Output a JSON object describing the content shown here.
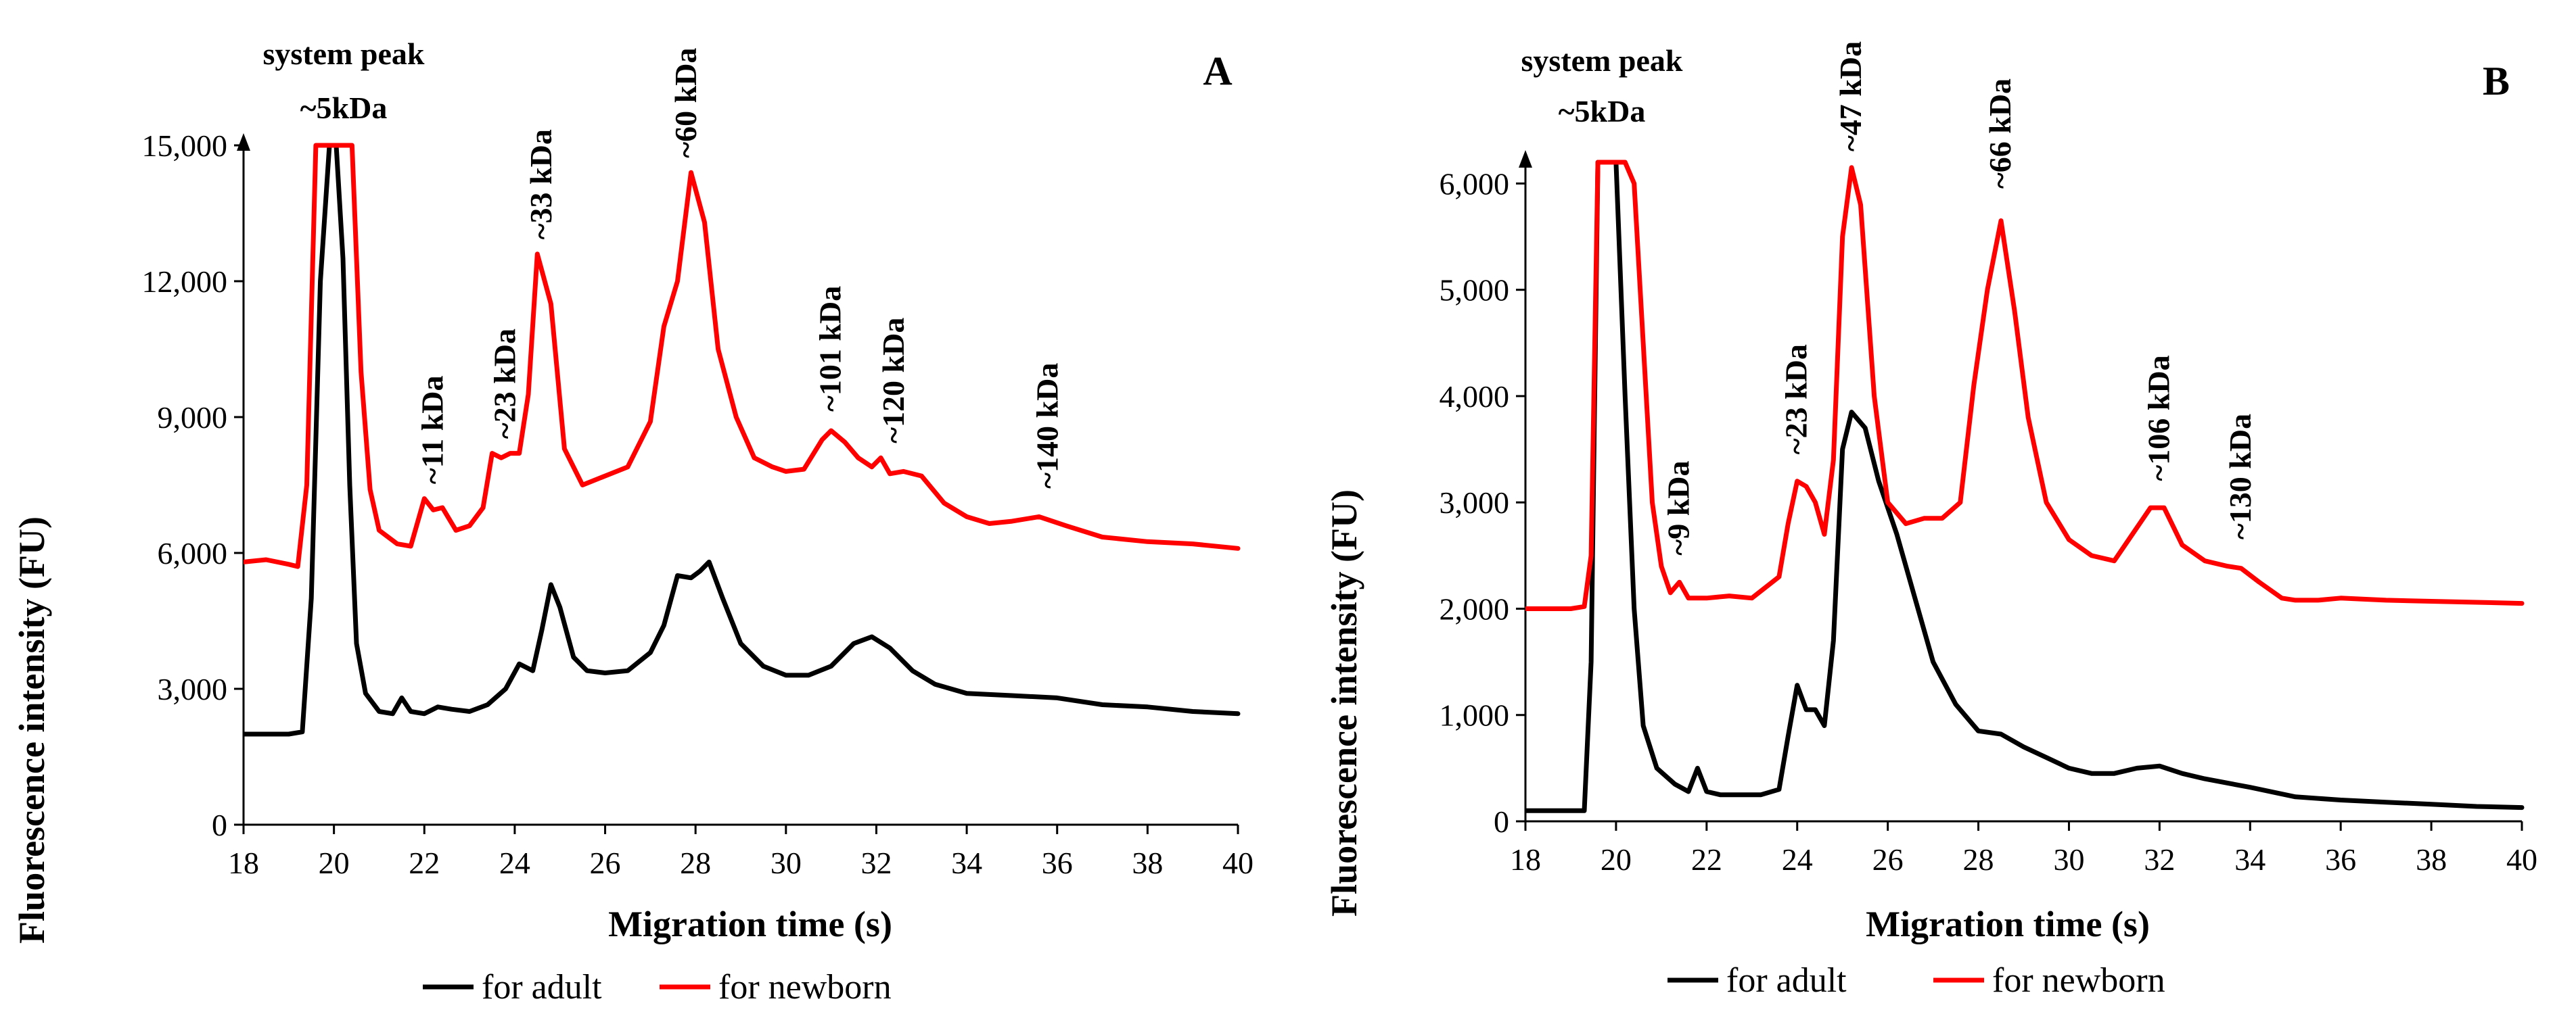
{
  "legend": {
    "adult": "for adult",
    "newborn": "for newborn"
  },
  "colors": {
    "adult": "#000000",
    "newborn": "#ff0000"
  },
  "chart_data": [
    {
      "panel": "A",
      "type": "line",
      "xlabel": "Migration time (s)",
      "ylabel": "Fluorescence intensity (FU)",
      "xlim": [
        18,
        40
      ],
      "ylim": [
        0,
        15000
      ],
      "xticks": [
        18,
        20,
        22,
        24,
        26,
        28,
        30,
        32,
        34,
        36,
        38,
        40
      ],
      "yticks": [
        0,
        3000,
        6000,
        9000,
        12000,
        15000
      ],
      "ytick_labels": [
        "0",
        "3,000",
        "6,000",
        "9,000",
        "12,000",
        "15,000"
      ],
      "system_peak": [
        "system peak",
        "~5kDa"
      ],
      "annotations": [
        {
          "label": "~11 kDa",
          "x": 22.2,
          "y": 7400
        },
        {
          "label": "~23 kDa",
          "x": 23.8,
          "y": 8400
        },
        {
          "label": "~33 kDa",
          "x": 24.6,
          "y": 12800
        },
        {
          "label": "~60 kDa",
          "x": 27.8,
          "y": 14600
        },
        {
          "label": "~101 kDa",
          "x": 31.0,
          "y": 9000
        },
        {
          "label": "~120 kDa",
          "x": 32.4,
          "y": 8300
        },
        {
          "label": "~140 kDa",
          "x": 35.8,
          "y": 7300
        }
      ],
      "series": [
        {
          "name": "for adult",
          "x": [
            18,
            19,
            19.3,
            19.5,
            19.7,
            19.9,
            20.05,
            20.2,
            20.35,
            20.5,
            20.7,
            21.0,
            21.3,
            21.5,
            21.7,
            22.0,
            22.3,
            22.6,
            23.0,
            23.4,
            23.8,
            24.1,
            24.4,
            24.6,
            24.8,
            25.0,
            25.3,
            25.6,
            26.0,
            26.5,
            27.0,
            27.3,
            27.6,
            27.9,
            28.1,
            28.3,
            28.6,
            29.0,
            29.5,
            30.0,
            30.5,
            31.0,
            31.5,
            31.9,
            32.3,
            32.8,
            33.3,
            34.0,
            35.0,
            36.0,
            37.0,
            38.0,
            39.0,
            40.0
          ],
          "y": [
            2000,
            2000,
            2050,
            5000,
            12000,
            15000,
            15000,
            12500,
            7500,
            4000,
            2900,
            2500,
            2450,
            2800,
            2500,
            2450,
            2600,
            2550,
            2500,
            2650,
            3000,
            3550,
            3400,
            4300,
            5300,
            4800,
            3700,
            3400,
            3350,
            3400,
            3800,
            4400,
            5500,
            5450,
            5600,
            5800,
            5000,
            4000,
            3500,
            3300,
            3300,
            3500,
            4000,
            4150,
            3900,
            3400,
            3100,
            2900,
            2850,
            2800,
            2650,
            2600,
            2500,
            2450
          ]
        },
        {
          "name": "for newborn",
          "x": [
            18,
            18.5,
            19.0,
            19.2,
            19.4,
            19.6,
            19.8,
            20.0,
            20.2,
            20.4,
            20.6,
            20.8,
            21.0,
            21.4,
            21.7,
            22.0,
            22.2,
            22.4,
            22.7,
            23.0,
            23.3,
            23.5,
            23.7,
            23.9,
            24.1,
            24.3,
            24.5,
            24.8,
            25.1,
            25.5,
            26.0,
            26.5,
            27.0,
            27.3,
            27.6,
            27.9,
            28.2,
            28.5,
            28.9,
            29.3,
            29.7,
            30.0,
            30.4,
            30.8,
            31.0,
            31.3,
            31.6,
            31.9,
            32.1,
            32.3,
            32.6,
            33.0,
            33.5,
            34.0,
            34.5,
            35.0,
            35.6,
            36.2,
            37.0,
            38.0,
            39.0,
            40.0
          ],
          "y": [
            5800,
            5850,
            5750,
            5700,
            7500,
            15000,
            15000,
            15000,
            15000,
            15000,
            10000,
            7400,
            6500,
            6200,
            6150,
            7200,
            6950,
            7000,
            6500,
            6600,
            7000,
            8200,
            8100,
            8200,
            8200,
            9500,
            12600,
            11500,
            8300,
            7500,
            7700,
            7900,
            8900,
            11000,
            12000,
            14400,
            13300,
            10500,
            9000,
            8100,
            7900,
            7800,
            7850,
            8500,
            8700,
            8450,
            8100,
            7900,
            8100,
            7750,
            7800,
            7700,
            7100,
            6800,
            6650,
            6700,
            6800,
            6600,
            6350,
            6250,
            6200,
            6100
          ]
        }
      ]
    },
    {
      "panel": "B",
      "type": "line",
      "xlabel": "Migration time (s)",
      "ylabel": "Fluorescence intensity (FU)",
      "xlim": [
        18,
        40
      ],
      "ylim": [
        0,
        6200
      ],
      "xticks": [
        18,
        20,
        22,
        24,
        26,
        28,
        30,
        32,
        34,
        36,
        38,
        40
      ],
      "yticks": [
        0,
        1000,
        2000,
        3000,
        4000,
        5000,
        6000
      ],
      "ytick_labels": [
        "0",
        "1,000",
        "2,000",
        "3,000",
        "4,000",
        "5,000",
        "6,000"
      ],
      "system_peak": [
        "system peak",
        "~5kDa"
      ],
      "annotations": [
        {
          "label": "~9 kDa",
          "x": 21.4,
          "y": 2450
        },
        {
          "label": "~23 kDa",
          "x": 24.0,
          "y": 3400
        },
        {
          "label": "~47 kDa",
          "x": 25.2,
          "y": 6250
        },
        {
          "label": "~66 kDa",
          "x": 28.5,
          "y": 5900
        },
        {
          "label": "~106 kDa",
          "x": 32.0,
          "y": 3150
        },
        {
          "label": "~130 kDa",
          "x": 33.8,
          "y": 2600
        }
      ],
      "series": [
        {
          "name": "for adult",
          "x": [
            18,
            19.0,
            19.3,
            19.45,
            19.6,
            19.8,
            20.0,
            20.2,
            20.4,
            20.6,
            20.9,
            21.3,
            21.6,
            21.8,
            22.0,
            22.3,
            22.7,
            23.2,
            23.6,
            23.8,
            24.0,
            24.2,
            24.4,
            24.6,
            24.8,
            25.0,
            25.2,
            25.5,
            25.8,
            26.2,
            26.6,
            27.0,
            27.5,
            28.0,
            28.5,
            29.0,
            29.5,
            30.0,
            30.5,
            31.0,
            31.5,
            32.0,
            32.5,
            33.0,
            34.0,
            35.0,
            36.0,
            37.0,
            38.0,
            39.0,
            40.0
          ],
          "y": [
            100,
            100,
            100,
            1500,
            6200,
            6200,
            6200,
            4000,
            2000,
            900,
            500,
            350,
            280,
            500,
            280,
            250,
            250,
            250,
            300,
            800,
            1280,
            1050,
            1050,
            900,
            1700,
            3500,
            3850,
            3700,
            3200,
            2700,
            2100,
            1500,
            1100,
            850,
            820,
            700,
            600,
            500,
            450,
            450,
            500,
            520,
            450,
            400,
            320,
            230,
            200,
            180,
            160,
            140,
            130
          ]
        },
        {
          "name": "for newborn",
          "x": [
            18,
            19.0,
            19.3,
            19.45,
            19.6,
            19.8,
            20.0,
            20.2,
            20.4,
            20.6,
            20.8,
            21.0,
            21.2,
            21.4,
            21.6,
            22.0,
            22.5,
            23.0,
            23.6,
            23.8,
            24.0,
            24.2,
            24.4,
            24.6,
            24.8,
            25.0,
            25.2,
            25.4,
            25.7,
            26.0,
            26.4,
            26.8,
            27.2,
            27.6,
            27.9,
            28.2,
            28.5,
            28.8,
            29.1,
            29.5,
            30.0,
            30.5,
            31.0,
            31.4,
            31.8,
            32.1,
            32.5,
            33.0,
            33.5,
            33.8,
            34.2,
            34.7,
            35.0,
            35.5,
            36.0,
            37.0,
            38.0,
            39.0,
            40.0
          ],
          "y": [
            2000,
            2000,
            2020,
            2500,
            6200,
            6200,
            6200,
            6200,
            6000,
            4500,
            3000,
            2400,
            2150,
            2250,
            2100,
            2100,
            2120,
            2100,
            2300,
            2800,
            3200,
            3150,
            3000,
            2700,
            3400,
            5500,
            6150,
            5800,
            4000,
            3000,
            2800,
            2850,
            2850,
            3000,
            4100,
            5000,
            5650,
            4800,
            3800,
            3000,
            2650,
            2500,
            2450,
            2700,
            2950,
            2950,
            2600,
            2450,
            2400,
            2380,
            2250,
            2100,
            2080,
            2080,
            2100,
            2080,
            2070,
            2060,
            2050
          ]
        }
      ]
    }
  ]
}
